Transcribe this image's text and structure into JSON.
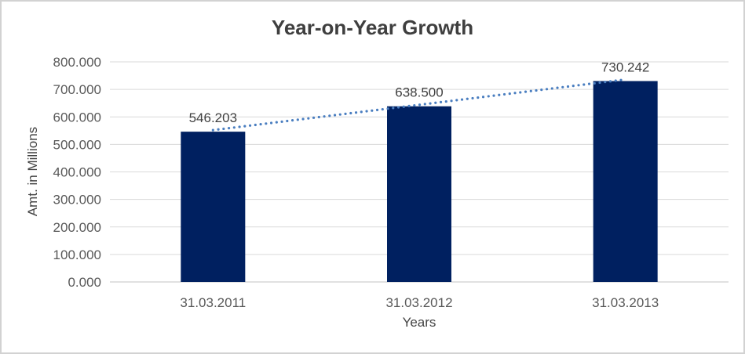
{
  "window": {
    "background_color": "#ffffff",
    "border_color": "#d2d2d2"
  },
  "chart_data": {
    "type": "bar",
    "title": "Year-on-Year Growth",
    "xlabel": "Years",
    "ylabel": "Amt. in Millions",
    "categories": [
      "31.03.2011",
      "31.03.2012",
      "31.03.2013"
    ],
    "values": [
      546.203,
      638.5,
      730.242
    ],
    "data_labels": [
      "546.203",
      "638.500",
      "730.242"
    ],
    "y_tick_labels": [
      "800.000",
      "700.000",
      "600.000",
      "500.000",
      "400.000",
      "300.000",
      "200.000",
      "100.000",
      "0.000"
    ],
    "ylim": [
      0,
      800
    ],
    "grid": true,
    "legend": "none",
    "trendline": {
      "type": "linear",
      "style": "dotted"
    },
    "colors": {
      "bar": "#002060",
      "trendline": "#4a7ec0",
      "gridline": "#d9d9d9",
      "axis_line": "#c3c3c3",
      "title_text": "#3f3f3f",
      "axis_title_text": "#444444",
      "tick_text": "#595959",
      "data_label_text": "#404040"
    }
  }
}
